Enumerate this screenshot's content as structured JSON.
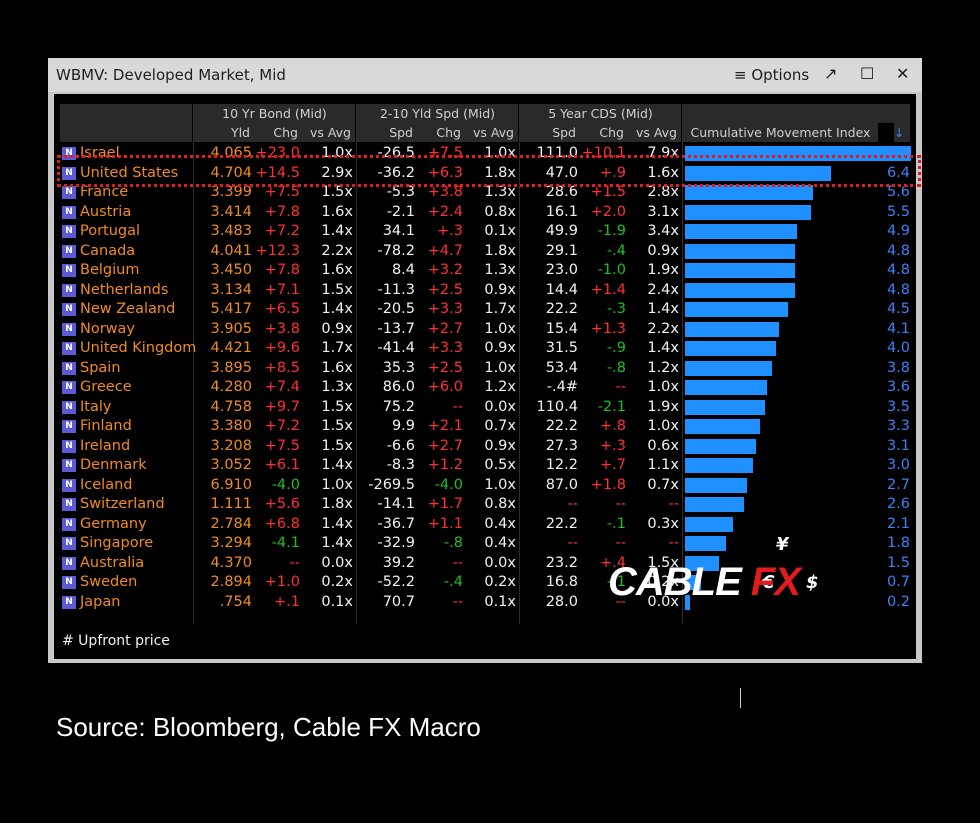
{
  "window": {
    "title": "WBMV: Developed Market, Mid",
    "options_label": "≡ Options",
    "icons": [
      "expand-icon",
      "maximize-icon",
      "close-icon"
    ]
  },
  "header_groups": [
    "10 Yr Bond (Mid)",
    "2-10 Yld Spd (Mid)",
    "5 Year CDS (Mid)"
  ],
  "columns": [
    "Yld",
    "Chg",
    "vs Avg",
    "Spd",
    "Chg",
    "vs Avg",
    "Spd",
    "Chg",
    "vs Avg",
    "Cumulative Movement Index"
  ],
  "sort_arrow": "↓",
  "rows": [
    {
      "country": "Israel",
      "yld": "4.065",
      "ychg": "+23.0",
      "yavg": "1.0x",
      "spd": "-26.5",
      "schg": "+7.5",
      "savg": "1.0x",
      "cds": "111.0",
      "cchg": "+10.1",
      "cavg": "7.9x",
      "index": "9.9"
    },
    {
      "country": "United States",
      "yld": "4.704",
      "ychg": "+14.5",
      "yavg": "2.9x",
      "spd": "-36.2",
      "schg": "+6.3",
      "savg": "1.8x",
      "cds": "47.0",
      "cchg": "+.9",
      "cavg": "1.6x",
      "index": "6.4"
    },
    {
      "country": "France",
      "yld": "3.399",
      "ychg": "+7.5",
      "yavg": "1.5x",
      "spd": "-5.3",
      "schg": "+3.8",
      "savg": "1.3x",
      "cds": "28.6",
      "cchg": "+1.5",
      "cavg": "2.8x",
      "index": "5.6"
    },
    {
      "country": "Austria",
      "yld": "3.414",
      "ychg": "+7.8",
      "yavg": "1.6x",
      "spd": "-2.1",
      "schg": "+2.4",
      "savg": "0.8x",
      "cds": "16.1",
      "cchg": "+2.0",
      "cavg": "3.1x",
      "index": "5.5"
    },
    {
      "country": "Portugal",
      "yld": "3.483",
      "ychg": "+7.2",
      "yavg": "1.4x",
      "spd": "34.1",
      "schg": "+.3",
      "savg": "0.1x",
      "cds": "49.9",
      "cchg": "-1.9",
      "cavg": "3.4x",
      "index": "4.9"
    },
    {
      "country": "Canada",
      "yld": "4.041",
      "ychg": "+12.3",
      "yavg": "2.2x",
      "spd": "-78.2",
      "schg": "+4.7",
      "savg": "1.8x",
      "cds": "29.1",
      "cchg": "-.4",
      "cavg": "0.9x",
      "index": "4.8"
    },
    {
      "country": "Belgium",
      "yld": "3.450",
      "ychg": "+7.8",
      "yavg": "1.6x",
      "spd": "8.4",
      "schg": "+3.2",
      "savg": "1.3x",
      "cds": "23.0",
      "cchg": "-1.0",
      "cavg": "1.9x",
      "index": "4.8"
    },
    {
      "country": "Netherlands",
      "yld": "3.134",
      "ychg": "+7.1",
      "yavg": "1.5x",
      "spd": "-11.3",
      "schg": "+2.5",
      "savg": "0.9x",
      "cds": "14.4",
      "cchg": "+1.4",
      "cavg": "2.4x",
      "index": "4.8"
    },
    {
      "country": "New Zealand",
      "yld": "5.417",
      "ychg": "+6.5",
      "yavg": "1.4x",
      "spd": "-20.5",
      "schg": "+3.3",
      "savg": "1.7x",
      "cds": "22.2",
      "cchg": "-.3",
      "cavg": "1.4x",
      "index": "4.5"
    },
    {
      "country": "Norway",
      "yld": "3.905",
      "ychg": "+3.8",
      "yavg": "0.9x",
      "spd": "-13.7",
      "schg": "+2.7",
      "savg": "1.0x",
      "cds": "15.4",
      "cchg": "+1.3",
      "cavg": "2.2x",
      "index": "4.1"
    },
    {
      "country": "United Kingdom",
      "yld": "4.421",
      "ychg": "+9.6",
      "yavg": "1.7x",
      "spd": "-41.4",
      "schg": "+3.3",
      "savg": "0.9x",
      "cds": "31.5",
      "cchg": "-.9",
      "cavg": "1.4x",
      "index": "4.0"
    },
    {
      "country": "Spain",
      "yld": "3.895",
      "ychg": "+8.5",
      "yavg": "1.6x",
      "spd": "35.3",
      "schg": "+2.5",
      "savg": "1.0x",
      "cds": "53.4",
      "cchg": "-.8",
      "cavg": "1.2x",
      "index": "3.8"
    },
    {
      "country": "Greece",
      "yld": "4.280",
      "ychg": "+7.4",
      "yavg": "1.3x",
      "spd": "86.0",
      "schg": "+6.0",
      "savg": "1.2x",
      "cds": "-.4#",
      "cchg": "--",
      "cavg": "1.0x",
      "index": "3.6"
    },
    {
      "country": "Italy",
      "yld": "4.758",
      "ychg": "+9.7",
      "yavg": "1.5x",
      "spd": "75.2",
      "schg": "--",
      "savg": "0.0x",
      "cds": "110.4",
      "cchg": "-2.1",
      "cavg": "1.9x",
      "index": "3.5"
    },
    {
      "country": "Finland",
      "yld": "3.380",
      "ychg": "+7.2",
      "yavg": "1.5x",
      "spd": "9.9",
      "schg": "+2.1",
      "savg": "0.7x",
      "cds": "22.2",
      "cchg": "+.8",
      "cavg": "1.0x",
      "index": "3.3"
    },
    {
      "country": "Ireland",
      "yld": "3.208",
      "ychg": "+7.5",
      "yavg": "1.5x",
      "spd": "-6.6",
      "schg": "+2.7",
      "savg": "0.9x",
      "cds": "27.3",
      "cchg": "+.3",
      "cavg": "0.6x",
      "index": "3.1"
    },
    {
      "country": "Denmark",
      "yld": "3.052",
      "ychg": "+6.1",
      "yavg": "1.4x",
      "spd": "-8.3",
      "schg": "+1.2",
      "savg": "0.5x",
      "cds": "12.2",
      "cchg": "+.7",
      "cavg": "1.1x",
      "index": "3.0"
    },
    {
      "country": "Iceland",
      "yld": "6.910",
      "ychg": "-4.0",
      "yavg": "1.0x",
      "spd": "-269.5",
      "schg": "-4.0",
      "savg": "1.0x",
      "cds": "87.0",
      "cchg": "+1.8",
      "cavg": "0.7x",
      "index": "2.7"
    },
    {
      "country": "Switzerland",
      "yld": "1.111",
      "ychg": "+5.6",
      "yavg": "1.8x",
      "spd": "-14.1",
      "schg": "+1.7",
      "savg": "0.8x",
      "cds": "--",
      "cchg": "--",
      "cavg": "--",
      "index": "2.6"
    },
    {
      "country": "Germany",
      "yld": "2.784",
      "ychg": "+6.8",
      "yavg": "1.4x",
      "spd": "-36.7",
      "schg": "+1.1",
      "savg": "0.4x",
      "cds": "22.2",
      "cchg": "-.1",
      "cavg": "0.3x",
      "index": "2.1"
    },
    {
      "country": "Singapore",
      "yld": "3.294",
      "ychg": "-4.1",
      "yavg": "1.4x",
      "spd": "-32.9",
      "schg": "-.8",
      "savg": "0.4x",
      "cds": "--",
      "cchg": "--",
      "cavg": "--",
      "index": "1.8"
    },
    {
      "country": "Australia",
      "yld": "4.370",
      "ychg": "--",
      "yavg": "0.0x",
      "spd": "39.2",
      "schg": "--",
      "savg": "0.0x",
      "cds": "23.2",
      "cchg": "+.4",
      "cavg": "1.5x",
      "index": "1.5"
    },
    {
      "country": "Sweden",
      "yld": "2.894",
      "ychg": "+1.0",
      "yavg": "0.2x",
      "spd": "-52.2",
      "schg": "-.4",
      "savg": "0.2x",
      "cds": "16.8",
      "cchg": "-.1",
      "cavg": "0.2x",
      "index": "0.7"
    },
    {
      "country": "Japan",
      "yld": ".754",
      "ychg": "+.1",
      "yavg": "0.1x",
      "spd": "70.7",
      "schg": "--",
      "savg": "0.1x",
      "cds": "28.0",
      "cchg": "--",
      "cavg": "0.0x",
      "index": "0.2"
    }
  ],
  "index_max": 9.9,
  "badge_label": "N",
  "footnote": "# Upfront price",
  "logo": {
    "part1": "CABLE",
    "part2": "FX"
  },
  "symbols": [
    "¥",
    "€",
    "$"
  ],
  "source": "Source: Bloomberg, Cable FX Macro",
  "colors": {
    "orange": "#f08c1e",
    "red": "#ff3030",
    "green": "#1fc01f",
    "bar": "#1e90ff",
    "index": "#3b82f6",
    "highlight": "#e21b1b"
  }
}
